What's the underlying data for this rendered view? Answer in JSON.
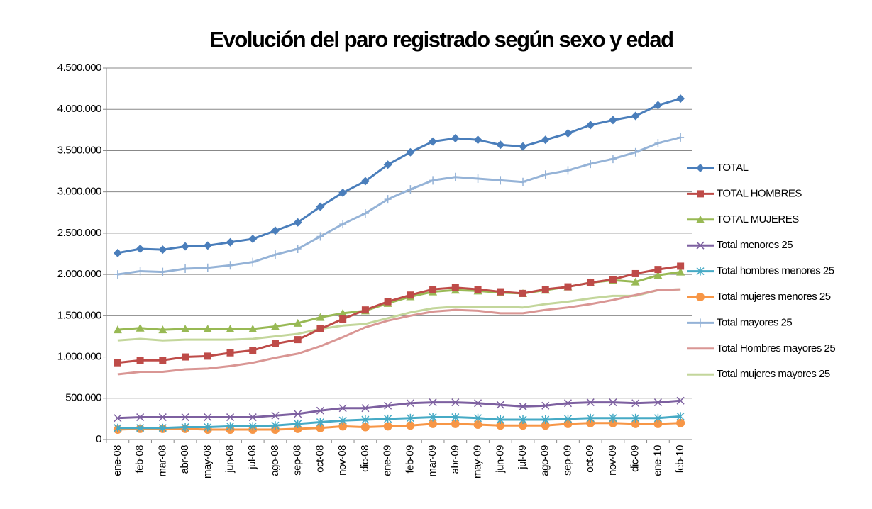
{
  "chart_data": {
    "type": "line",
    "title": "Evolución del paro registrado según sexo y edad",
    "categories": [
      "ene-08",
      "feb-08",
      "mar-08",
      "abr-08",
      "may-08",
      "jun-08",
      "jul-08",
      "ago-08",
      "sep-08",
      "oct-08",
      "nov-08",
      "dic-08",
      "ene-09",
      "feb-09",
      "mar-09",
      "abr-09",
      "may-09",
      "jun-09",
      "jul-09",
      "ago-09",
      "sep-09",
      "oct-09",
      "nov-09",
      "dic-09",
      "ene-10",
      "feb-10"
    ],
    "ylim": [
      0,
      4500000
    ],
    "yticks": [
      0,
      {
        "value": 500000,
        "label": "500.000"
      },
      {
        "value": 1000000,
        "label": "1.000.000"
      },
      {
        "value": 1500000,
        "label": "1.500.000"
      },
      {
        "value": 2000000,
        "label": "2.000.000"
      },
      {
        "value": 2500000,
        "label": "2.500.000"
      },
      {
        "value": 3000000,
        "label": "3.000.000"
      },
      {
        "value": 3500000,
        "label": "3.500.000"
      },
      {
        "value": 4000000,
        "label": "4.000.000"
      },
      {
        "value": 4500000,
        "label": "4.500.000"
      }
    ],
    "grid": true,
    "legend": "right",
    "series": [
      {
        "name": "TOTAL",
        "color": "#4a7ebb",
        "marker": "diamond",
        "values": [
          2260000,
          2310000,
          2300000,
          2340000,
          2350000,
          2390000,
          2430000,
          2530000,
          2630000,
          2820000,
          2990000,
          3130000,
          3330000,
          3480000,
          3610000,
          3650000,
          3630000,
          3570000,
          3550000,
          3630000,
          3710000,
          3810000,
          3870000,
          3920000,
          4050000,
          4130000
        ]
      },
      {
        "name": "TOTAL HOMBRES",
        "color": "#be4b48",
        "marker": "square",
        "values": [
          930000,
          960000,
          960000,
          1000000,
          1010000,
          1050000,
          1080000,
          1160000,
          1210000,
          1340000,
          1460000,
          1570000,
          1670000,
          1750000,
          1820000,
          1840000,
          1820000,
          1790000,
          1770000,
          1820000,
          1850000,
          1900000,
          1940000,
          2010000,
          2060000,
          2100000
        ]
      },
      {
        "name": "TOTAL MUJERES",
        "color": "#98b954",
        "marker": "triangle",
        "values": [
          1330000,
          1350000,
          1330000,
          1340000,
          1340000,
          1340000,
          1340000,
          1370000,
          1410000,
          1480000,
          1530000,
          1560000,
          1650000,
          1730000,
          1790000,
          1810000,
          1800000,
          1780000,
          1770000,
          1810000,
          1850000,
          1900000,
          1930000,
          1910000,
          1990000,
          2030000
        ]
      },
      {
        "name": "Total menores 25",
        "color": "#7d60a0",
        "marker": "x",
        "values": [
          260000,
          270000,
          270000,
          270000,
          270000,
          270000,
          270000,
          290000,
          310000,
          350000,
          380000,
          380000,
          410000,
          440000,
          450000,
          450000,
          440000,
          420000,
          400000,
          410000,
          440000,
          450000,
          450000,
          440000,
          450000,
          470000
        ]
      },
      {
        "name": "Total hombres menores 25",
        "color": "#46aac5",
        "marker": "star",
        "values": [
          140000,
          140000,
          140000,
          150000,
          150000,
          160000,
          160000,
          170000,
          190000,
          210000,
          230000,
          240000,
          250000,
          260000,
          270000,
          270000,
          260000,
          240000,
          240000,
          240000,
          250000,
          260000,
          260000,
          260000,
          260000,
          280000
        ]
      },
      {
        "name": "Total mujeres menores 25",
        "color": "#f79646",
        "marker": "circle",
        "values": [
          120000,
          130000,
          130000,
          130000,
          120000,
          120000,
          120000,
          120000,
          130000,
          140000,
          160000,
          150000,
          160000,
          170000,
          190000,
          190000,
          180000,
          170000,
          170000,
          170000,
          190000,
          200000,
          200000,
          190000,
          190000,
          200000
        ]
      },
      {
        "name": "Total mayores 25",
        "color": "#95b3d7",
        "marker": "plus",
        "values": [
          2000000,
          2040000,
          2030000,
          2070000,
          2080000,
          2110000,
          2150000,
          2240000,
          2310000,
          2460000,
          2610000,
          2740000,
          2910000,
          3030000,
          3140000,
          3180000,
          3160000,
          3140000,
          3120000,
          3210000,
          3260000,
          3340000,
          3400000,
          3480000,
          3590000,
          3660000
        ]
      },
      {
        "name": "Total Hombres mayores 25",
        "color": "#d99694",
        "marker": "none",
        "values": [
          790000,
          820000,
          820000,
          850000,
          860000,
          890000,
          930000,
          990000,
          1040000,
          1130000,
          1240000,
          1360000,
          1440000,
          1500000,
          1550000,
          1570000,
          1560000,
          1530000,
          1530000,
          1570000,
          1600000,
          1640000,
          1690000,
          1750000,
          1810000,
          1820000
        ]
      },
      {
        "name": "Total mujeres mayores 25",
        "color": "#c3d69b",
        "marker": "none",
        "values": [
          1200000,
          1220000,
          1200000,
          1210000,
          1210000,
          1210000,
          1220000,
          1250000,
          1280000,
          1340000,
          1380000,
          1400000,
          1470000,
          1540000,
          1590000,
          1610000,
          1610000,
          1610000,
          1600000,
          1640000,
          1670000,
          1710000,
          1740000,
          1740000,
          1810000,
          1820000
        ]
      }
    ]
  }
}
